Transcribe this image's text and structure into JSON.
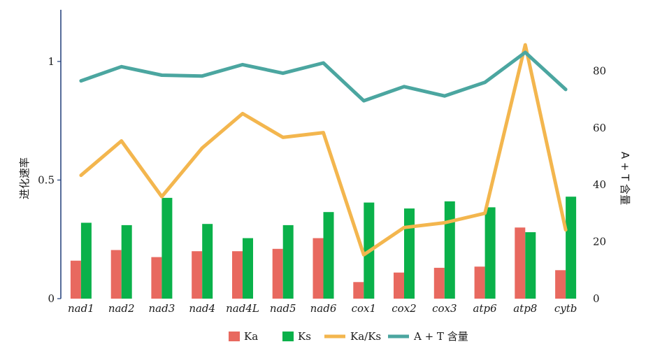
{
  "chart_data": {
    "type": "bar",
    "categories": [
      "nad1",
      "nad2",
      "nad3",
      "nad4",
      "nad4L",
      "nad5",
      "nad6",
      "cox1",
      "cox2",
      "cox3",
      "atp6",
      "atp8",
      "cytb"
    ],
    "series": [
      {
        "name": "Ka",
        "type": "bar",
        "axis": "left",
        "color": "#e8695f",
        "values": [
          0.16,
          0.205,
          0.175,
          0.2,
          0.2,
          0.21,
          0.255,
          0.07,
          0.11,
          0.13,
          0.135,
          0.3,
          0.12
        ]
      },
      {
        "name": "Ks",
        "type": "bar",
        "axis": "left",
        "color": "#0ab14a",
        "values": [
          0.32,
          0.31,
          0.425,
          0.315,
          0.255,
          0.31,
          0.365,
          0.405,
          0.38,
          0.41,
          0.385,
          0.28,
          0.43
        ]
      },
      {
        "name": "Ka/Ks",
        "type": "line",
        "axis": "left",
        "color": "#f3b64e",
        "values": [
          0.52,
          0.665,
          0.43,
          0.635,
          0.78,
          0.68,
          0.7,
          0.185,
          0.3,
          0.32,
          0.36,
          1.07,
          0.29
        ]
      },
      {
        "name": "A + T 含量",
        "type": "line",
        "axis": "right",
        "color": "#4ba6a0",
        "values": [
          76.5,
          81.5,
          78.5,
          78.2,
          82.2,
          79.2,
          82.8,
          69.5,
          74.5,
          71.2,
          76,
          86.5,
          73.5
        ]
      }
    ],
    "ylabel": "进化速率",
    "y2label": "A + T 含量",
    "ylim": [
      0,
      1.2
    ],
    "y2lim": [
      0,
      100
    ],
    "yticks": [
      "0",
      "0.5",
      "1"
    ],
    "y2ticks": [
      "0",
      "20",
      "40",
      "60",
      "80"
    ],
    "legend_position": "bottom",
    "grid": false
  }
}
